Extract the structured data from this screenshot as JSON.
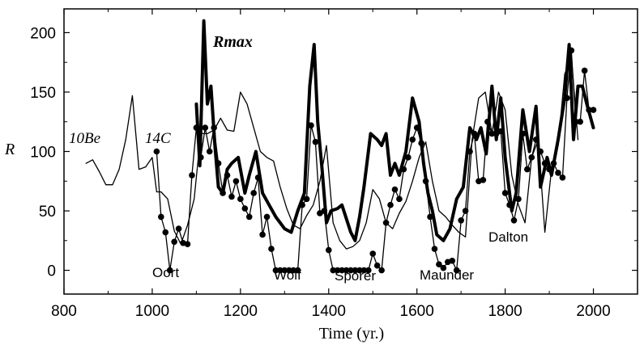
{
  "chart_data": {
    "type": "line",
    "xlabel": "Time (yr.)",
    "ylabel": "R",
    "xlim": [
      800,
      2100
    ],
    "ylim": [
      -20,
      220
    ],
    "x_ticks": [
      800,
      1000,
      1200,
      1400,
      1600,
      1800,
      2000
    ],
    "y_ticks": [
      0,
      50,
      100,
      150,
      200
    ],
    "x_tick_labels": [
      "800",
      "1000",
      "1200",
      "1400",
      "1600",
      "1800",
      "2000"
    ],
    "y_tick_labels": [
      "0",
      "50",
      "100",
      "150",
      "200"
    ],
    "grid": false,
    "series": [
      {
        "name": "10Be",
        "style": "thin",
        "color": "#000000",
        "x": [
          850,
          865,
          880,
          895,
          910,
          925,
          940,
          955,
          970,
          985,
          1000,
          1010,
          1020,
          1035,
          1050,
          1065,
          1080,
          1095,
          1110,
          1125,
          1140,
          1155,
          1170,
          1185,
          1200,
          1215,
          1230,
          1245,
          1260,
          1275,
          1290,
          1305,
          1320,
          1335,
          1350,
          1365,
          1380,
          1395,
          1410,
          1425,
          1440,
          1455,
          1470,
          1485,
          1500,
          1515,
          1530,
          1545,
          1560,
          1575,
          1590,
          1605,
          1620,
          1635,
          1650,
          1665,
          1680,
          1695,
          1710,
          1725,
          1740,
          1755,
          1770,
          1785,
          1800,
          1815,
          1830,
          1845,
          1860,
          1875,
          1890,
          1905,
          1920,
          1935,
          1950,
          1965
        ],
        "y": [
          90,
          93,
          83,
          72,
          72,
          85,
          110,
          147,
          85,
          87,
          95,
          66,
          66,
          60,
          33,
          22,
          38,
          60,
          115,
          115,
          118,
          128,
          118,
          117,
          150,
          140,
          120,
          100,
          95,
          92,
          70,
          52,
          38,
          35,
          46,
          55,
          75,
          105,
          40,
          25,
          18,
          20,
          25,
          40,
          68,
          60,
          40,
          35,
          48,
          58,
          75,
          95,
          108,
          75,
          50,
          45,
          38,
          32,
          28,
          110,
          145,
          150,
          115,
          150,
          135,
          80,
          55,
          40,
          95,
          110,
          32,
          85,
          105,
          165,
          180,
          110
        ]
      },
      {
        "name": "14C",
        "style": "thin-markers",
        "color": "#000000",
        "x": [
          1010,
          1020,
          1030,
          1040,
          1050,
          1060,
          1070,
          1080,
          1090,
          1100,
          1110,
          1120,
          1130,
          1140,
          1150,
          1160,
          1170,
          1180,
          1190,
          1200,
          1210,
          1220,
          1230,
          1240,
          1250,
          1260,
          1270,
          1280,
          1290,
          1300,
          1310,
          1320,
          1330,
          1340,
          1350,
          1360,
          1370,
          1380,
          1390,
          1400,
          1410,
          1420,
          1430,
          1440,
          1450,
          1460,
          1470,
          1480,
          1490,
          1500,
          1510,
          1520,
          1530,
          1540,
          1550,
          1560,
          1570,
          1580,
          1590,
          1600,
          1610,
          1620,
          1630,
          1640,
          1650,
          1660,
          1670,
          1680,
          1690,
          1700,
          1710,
          1720,
          1730,
          1740,
          1750,
          1760,
          1770,
          1780,
          1790,
          1800,
          1810,
          1820,
          1830,
          1840,
          1850,
          1860,
          1870,
          1880,
          1890,
          1900,
          1910,
          1920,
          1930,
          1940,
          1950,
          1960,
          1970,
          1980,
          1990,
          2000
        ],
        "y": [
          100,
          45,
          32,
          0,
          24,
          35,
          23,
          22,
          80,
          120,
          95,
          120,
          100,
          120,
          90,
          65,
          80,
          62,
          75,
          60,
          52,
          45,
          65,
          78,
          30,
          45,
          18,
          0,
          0,
          0,
          0,
          0,
          0,
          55,
          60,
          122,
          108,
          48,
          50,
          17,
          0,
          0,
          0,
          0,
          0,
          0,
          0,
          0,
          0,
          14,
          4,
          0,
          40,
          55,
          68,
          60,
          85,
          95,
          110,
          120,
          107,
          75,
          45,
          18,
          5,
          2,
          7,
          8,
          0,
          42,
          50,
          100,
          115,
          75,
          76,
          125,
          115,
          115,
          117,
          65,
          55,
          42,
          60,
          115,
          85,
          95,
          110,
          100,
          90,
          85,
          90,
          82,
          78,
          145,
          185,
          125,
          125,
          168,
          135,
          135
        ]
      },
      {
        "name": "Rmax",
        "style": "thick",
        "color": "#000000",
        "x": [
          1100,
          1108,
          1117,
          1125,
          1133,
          1142,
          1150,
          1160,
          1170,
          1180,
          1195,
          1210,
          1220,
          1235,
          1250,
          1265,
          1280,
          1300,
          1315,
          1330,
          1345,
          1357,
          1367,
          1375,
          1385,
          1395,
          1405,
          1420,
          1430,
          1450,
          1460,
          1470,
          1480,
          1495,
          1510,
          1520,
          1530,
          1540,
          1550,
          1560,
          1575,
          1590,
          1605,
          1615,
          1625,
          1635,
          1645,
          1660,
          1675,
          1690,
          1705,
          1720,
          1735,
          1745,
          1757,
          1770,
          1780,
          1790,
          1800,
          1815,
          1825,
          1840,
          1855,
          1870,
          1880,
          1895,
          1905,
          1920,
          1935,
          1945,
          1955,
          1965,
          1975,
          1985,
          2000
        ],
        "y": [
          140,
          88,
          210,
          140,
          155,
          105,
          70,
          65,
          85,
          90,
          95,
          65,
          80,
          100,
          65,
          55,
          45,
          35,
          32,
          50,
          65,
          155,
          190,
          125,
          85,
          40,
          50,
          52,
          55,
          32,
          25,
          45,
          70,
          115,
          110,
          105,
          115,
          80,
          90,
          80,
          100,
          145,
          125,
          90,
          65,
          50,
          30,
          25,
          35,
          60,
          70,
          120,
          110,
          120,
          98,
          155,
          110,
          145,
          95,
          50,
          65,
          135,
          100,
          138,
          70,
          95,
          80,
          110,
          145,
          190,
          110,
          155,
          155,
          140,
          120
        ]
      }
    ],
    "annotations": [
      "10Be",
      "14C",
      "Rmax",
      "Oort",
      "Wolf",
      "Spörer",
      "Maunder",
      "Dalton"
    ]
  }
}
